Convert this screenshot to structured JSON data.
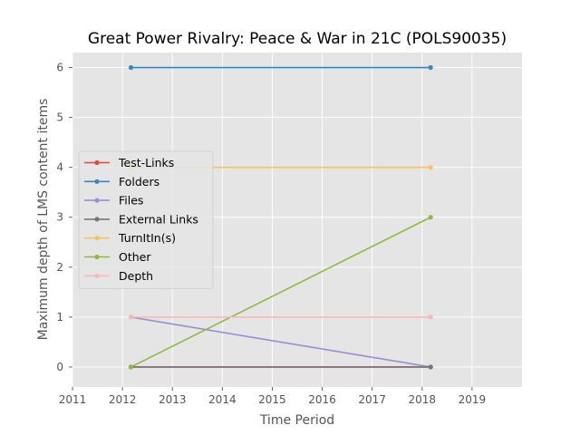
{
  "chart_data": {
    "type": "line",
    "title": "Great Power Rivalry: Peace & War in 21C (POLS90035)",
    "xlabel": "Time Period",
    "ylabel": "Maximum depth of LMS content items",
    "xlim": [
      2011,
      2020
    ],
    "ylim": [
      -0.4,
      6.3
    ],
    "xticks": [
      "2011",
      "2012",
      "2013",
      "2014",
      "2015",
      "2016",
      "2017",
      "2018",
      "2019"
    ],
    "yticks": [
      "0",
      "1",
      "2",
      "3",
      "4",
      "5",
      "6"
    ],
    "grid": true,
    "legend_position": "center-left",
    "x": [
      2012.17,
      2018.17
    ],
    "series": [
      {
        "name": "Test-Links",
        "values": [
          0,
          0
        ],
        "color": "#E24A33"
      },
      {
        "name": "Folders",
        "values": [
          6,
          6
        ],
        "color": "#348ABD"
      },
      {
        "name": "Files",
        "values": [
          1,
          0
        ],
        "color": "#988ED5"
      },
      {
        "name": "External Links",
        "values": [
          0,
          0
        ],
        "color": "#777777"
      },
      {
        "name": "TurnItIn(s)",
        "values": [
          4,
          4
        ],
        "color": "#FBC15E"
      },
      {
        "name": "Other",
        "values": [
          0,
          3
        ],
        "color": "#8EBA42"
      },
      {
        "name": "Depth",
        "values": [
          1,
          1
        ],
        "color": "#FFB5B8"
      }
    ]
  },
  "colors": {
    "plot_background": "#E5E5E5",
    "grid": "#FFFFFF"
  }
}
